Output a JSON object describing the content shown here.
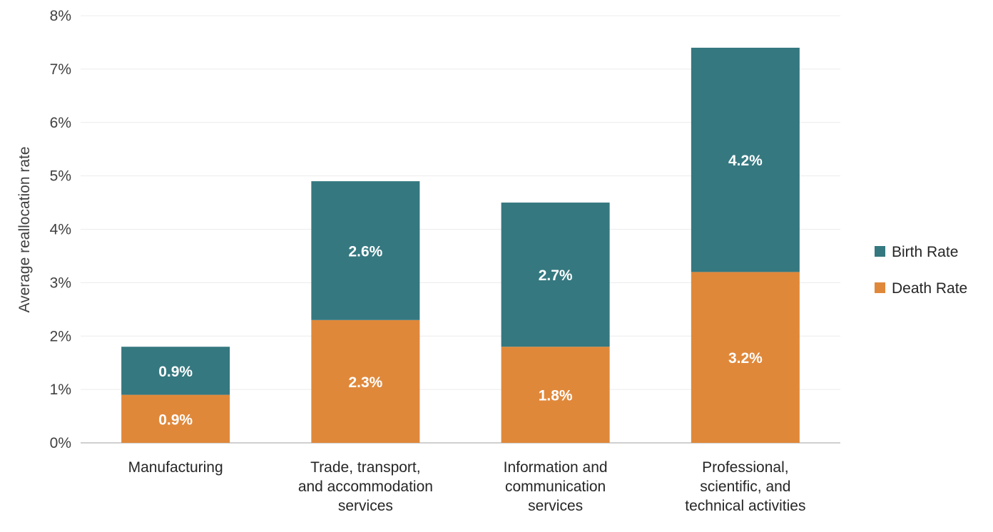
{
  "chart_data": {
    "type": "bar",
    "stacked": true,
    "title": "",
    "xlabel": "",
    "ylabel": "Average reallocation rate",
    "ylim": [
      0,
      8
    ],
    "yticks": [
      "0%",
      "1%",
      "2%",
      "3%",
      "4%",
      "5%",
      "6%",
      "7%",
      "8%"
    ],
    "grid": true,
    "legend_position": "right",
    "categories": [
      [
        "Manufacturing"
      ],
      [
        "Trade, transport,",
        "and accommodation",
        "services"
      ],
      [
        "Information and",
        "communication",
        "services"
      ],
      [
        "Professional,",
        "scientific, and",
        "technical activities"
      ]
    ],
    "series": [
      {
        "name": "Death Rate",
        "color": "#E0883A",
        "values": [
          0.9,
          2.3,
          1.8,
          3.2
        ],
        "labels": [
          "0.9%",
          "2.3%",
          "1.8%",
          "3.2%"
        ]
      },
      {
        "name": "Birth Rate",
        "color": "#357880",
        "values": [
          0.9,
          2.6,
          2.7,
          4.2
        ],
        "labels": [
          "0.9%",
          "2.6%",
          "2.7%",
          "4.2%"
        ]
      }
    ],
    "legend": [
      {
        "name": "Birth Rate",
        "color": "#357880"
      },
      {
        "name": "Death Rate",
        "color": "#E0883A"
      }
    ]
  }
}
